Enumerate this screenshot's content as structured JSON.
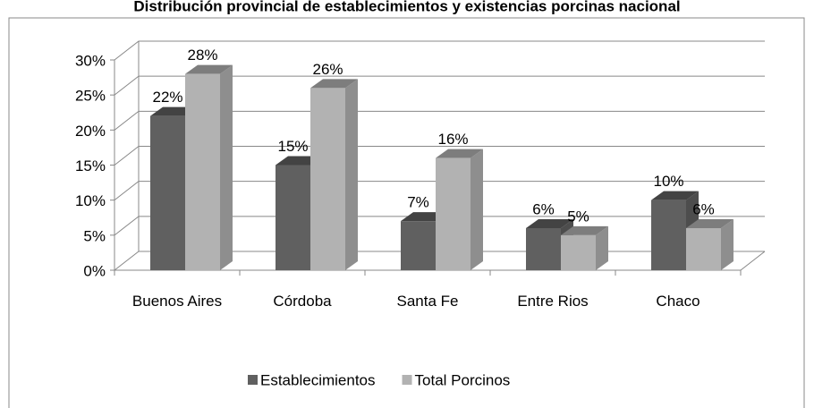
{
  "chart_data": {
    "type": "bar3d",
    "title": "Distribución provincial de establecimientos y existencias porcinas nacional",
    "categories": [
      "Buenos Aires",
      "Córdoba",
      "Santa Fe",
      "Entre Rios",
      "Chaco"
    ],
    "series": [
      {
        "name": "Establecimientos",
        "color": "#606060",
        "values": [
          22,
          15,
          7,
          6,
          10
        ],
        "value_labels": [
          "22%",
          "15%",
          "7%",
          "6%",
          "10%"
        ]
      },
      {
        "name": "Total Porcinos",
        "color": "#b2b2b2",
        "values": [
          28,
          26,
          16,
          5,
          6
        ],
        "value_labels": [
          "28%",
          "26%",
          "16%",
          "5%",
          "6%"
        ]
      }
    ],
    "ylim": [
      0,
      30
    ],
    "yticks": [
      {
        "value": 0,
        "label": "0%"
      },
      {
        "value": 5,
        "label": "5%"
      },
      {
        "value": 10,
        "label": "10%"
      },
      {
        "value": 15,
        "label": "15%"
      },
      {
        "value": 20,
        "label": "20%"
      },
      {
        "value": 25,
        "label": "25%"
      },
      {
        "value": 30,
        "label": "30%"
      }
    ],
    "grid": true,
    "legend": "bottom"
  }
}
